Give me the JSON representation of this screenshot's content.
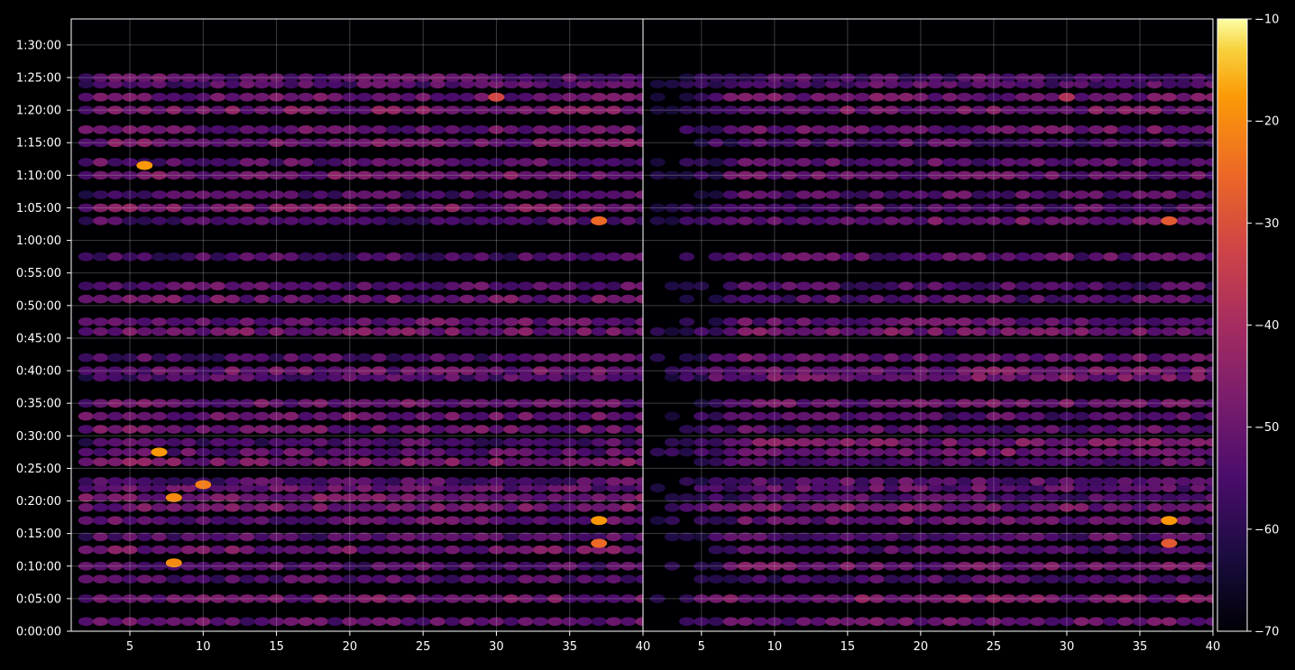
{
  "chart_data": [
    {
      "type": "heatmap",
      "panel": "left",
      "x_ticks": [
        5,
        10,
        15,
        20,
        25,
        30,
        35,
        40
      ],
      "xlim": [
        1,
        40
      ],
      "y_ticks": [
        "0:00:00",
        "0:05:00",
        "0:10:00",
        "0:15:00",
        "0:20:00",
        "0:25:00",
        "0:30:00",
        "0:35:00",
        "0:40:00",
        "0:45:00",
        "0:50:00",
        "0:55:00",
        "1:00:00",
        "1:05:00",
        "1:10:00",
        "1:15:00",
        "1:20:00",
        "1:25:00",
        "1:30:00"
      ],
      "ylim_minutes": [
        0,
        94
      ],
      "grid": true,
      "bright_rows_minutes": [
        1.5,
        5,
        8,
        10,
        12.5,
        14.5,
        17,
        19,
        20.5,
        22,
        23,
        26,
        27.5,
        29,
        31,
        33,
        35,
        39,
        40,
        42,
        46,
        47.5,
        51,
        53,
        57.5,
        63,
        65,
        67,
        70,
        72,
        75,
        77,
        80,
        82,
        84,
        85
      ],
      "hotspots": [
        {
          "x": 8,
          "minute": 20.5,
          "value": -20
        },
        {
          "x": 10,
          "minute": 22.5,
          "value": -22
        },
        {
          "x": 7,
          "minute": 27.5,
          "value": -18
        },
        {
          "x": 37,
          "minute": 17,
          "value": -18
        },
        {
          "x": 37,
          "minute": 13.5,
          "value": -25
        },
        {
          "x": 8,
          "minute": 10.5,
          "value": -20
        },
        {
          "x": 6,
          "minute": 71.5,
          "value": -18
        },
        {
          "x": 37,
          "minute": 63,
          "value": -25
        },
        {
          "x": 30,
          "minute": 82,
          "value": -32
        }
      ]
    },
    {
      "type": "heatmap",
      "panel": "right",
      "x_ticks": [
        5,
        10,
        15,
        20,
        25,
        30,
        35,
        40
      ],
      "xlim": [
        1,
        40
      ],
      "ylim_minutes": [
        0,
        94
      ],
      "grid": true,
      "hotspots": [
        {
          "x": 37,
          "minute": 17,
          "value": -18
        },
        {
          "x": 37,
          "minute": 13.5,
          "value": -28
        },
        {
          "x": 37,
          "minute": 63,
          "value": -28
        },
        {
          "x": 30,
          "minute": 82,
          "value": -38
        }
      ]
    }
  ],
  "colorbar": {
    "colormap": "inferno",
    "min": -70,
    "max": -10,
    "ticks": [
      "−10",
      "−20",
      "−30",
      "−40",
      "−50",
      "−60",
      "−70"
    ]
  }
}
